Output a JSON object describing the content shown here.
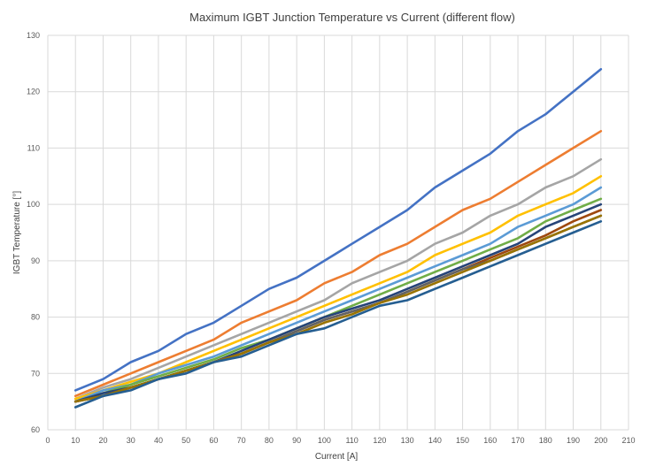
{
  "chart_data": {
    "type": "line",
    "title": "Maximum IGBT Junction Temperature vs Current (different flow)",
    "xlabel": "Current   [A]",
    "ylabel": "IGBT Temperature  [°]",
    "xlim": [
      0,
      210
    ],
    "ylim": [
      60,
      130
    ],
    "xticks": [
      0,
      10,
      20,
      30,
      40,
      50,
      60,
      70,
      80,
      90,
      100,
      110,
      120,
      130,
      140,
      150,
      160,
      170,
      180,
      190,
      200,
      210
    ],
    "yticks": [
      60,
      70,
      80,
      90,
      100,
      110,
      120,
      130
    ],
    "grid": true,
    "legend": "none",
    "x": [
      10,
      20,
      30,
      40,
      50,
      60,
      70,
      80,
      90,
      100,
      110,
      120,
      130,
      140,
      150,
      160,
      170,
      180,
      190,
      200
    ],
    "series": [
      {
        "color": "#4472C4",
        "values": [
          67,
          69,
          72,
          74,
          77,
          79,
          82,
          85,
          87,
          90,
          93,
          96,
          99,
          103,
          106,
          109,
          113,
          116,
          120,
          124
        ]
      },
      {
        "color": "#ED7D31",
        "values": [
          66,
          68,
          70,
          72,
          74,
          76,
          79,
          81,
          83,
          86,
          88,
          91,
          93,
          96,
          99,
          101,
          104,
          107,
          110,
          113
        ]
      },
      {
        "color": "#A5A5A5",
        "values": [
          65.5,
          67.5,
          69,
          71,
          73,
          75,
          77,
          79,
          81,
          83,
          86,
          88,
          90,
          93,
          95,
          98,
          100,
          103,
          105,
          108
        ]
      },
      {
        "color": "#FFC000",
        "values": [
          65.5,
          67,
          68.5,
          70,
          72,
          74,
          76,
          78,
          80,
          82,
          84,
          86,
          88,
          91,
          93,
          95,
          98,
          100,
          102,
          105
        ]
      },
      {
        "color": "#5B9BD5",
        "values": [
          65,
          67,
          68,
          70,
          71.5,
          73,
          75,
          77,
          79,
          81,
          83,
          85,
          87,
          89,
          91,
          93,
          96,
          98,
          100,
          103
        ]
      },
      {
        "color": "#70AD47",
        "values": [
          65,
          66.5,
          68,
          69.5,
          71,
          72.5,
          74.5,
          76,
          78,
          80,
          82,
          84,
          86,
          88,
          90,
          92,
          94,
          97,
          99,
          101
        ]
      },
      {
        "color": "#264478",
        "values": [
          65,
          66.5,
          67.5,
          69,
          70.5,
          72,
          74,
          76,
          78,
          80,
          81.5,
          83,
          85,
          87,
          89,
          91,
          93,
          96,
          98,
          100
        ]
      },
      {
        "color": "#9E480E",
        "values": [
          65,
          66,
          67.5,
          69,
          70.5,
          72,
          73.5,
          75.5,
          77.5,
          79.5,
          81,
          82.5,
          84.5,
          86.5,
          88.5,
          90.5,
          92.5,
          94.5,
          97,
          99
        ]
      },
      {
        "color": "#636363",
        "values": [
          65,
          66,
          67.5,
          69,
          70.5,
          72,
          73.5,
          75.5,
          77.5,
          79.5,
          81,
          82.5,
          84.5,
          86.5,
          88.5,
          90,
          92,
          94,
          96,
          98
        ]
      },
      {
        "color": "#997300",
        "values": [
          65,
          66,
          67.5,
          69,
          70.5,
          72,
          73.5,
          75.5,
          77,
          79,
          80.5,
          82.5,
          84,
          86,
          88,
          90,
          92,
          94,
          96,
          98
        ]
      },
      {
        "color": "#255E91",
        "values": [
          64,
          66,
          67,
          69,
          70,
          72,
          73,
          75,
          77,
          78,
          80,
          82,
          83,
          85,
          87,
          89,
          91,
          93,
          95,
          97
        ]
      }
    ]
  }
}
